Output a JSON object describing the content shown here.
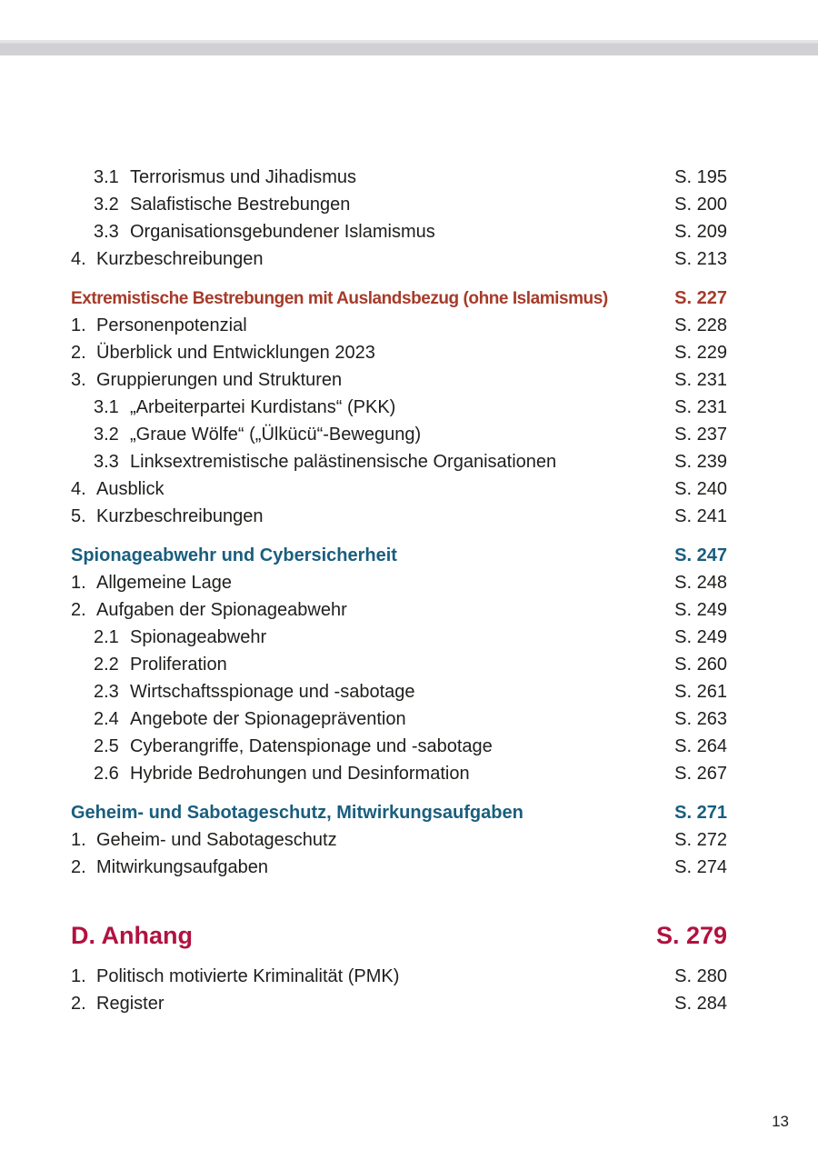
{
  "colors": {
    "body_text": "#1e1e1c",
    "heading_red_brown": "#a63b2a",
    "heading_blue": "#195e7e",
    "chapter_crimson": "#b1123f",
    "top_bar_gray": "#d1d1d3"
  },
  "page_number": "13",
  "rows": [
    {
      "num": "3.1",
      "label": "Terrorismus und Jihadismus",
      "page": "S. 195"
    },
    {
      "num": "3.2",
      "label": "Salafistische Bestrebungen",
      "page": "S. 200"
    },
    {
      "num": "3.3",
      "label": "Organisationsgebundener Islamismus",
      "page": "S. 209"
    },
    {
      "num": "4.",
      "label": "Kurzbeschreibungen",
      "page": "S. 213"
    },
    {
      "label": "Extremistische Bestrebungen mit Auslandsbezug (ohne Islamismus)",
      "page": "S. 227"
    },
    {
      "num": "1.",
      "label": "Personenpotenzial",
      "page": "S. 228"
    },
    {
      "num": "2.",
      "label": "Überblick und Entwicklungen 2023",
      "page": "S. 229"
    },
    {
      "num": "3.",
      "label": "Gruppierungen und Strukturen",
      "page": "S. 231"
    },
    {
      "num": "3.1",
      "label": "„Arbeiterpartei Kurdistans“ (PKK)",
      "page": "S. 231"
    },
    {
      "num": "3.2",
      "label": "„Graue Wölfe“ („Ülkücü“-Bewegung)",
      "page": "S. 237"
    },
    {
      "num": "3.3",
      "label": "Linksextremistische palästinensische Organisationen",
      "page": "S. 239"
    },
    {
      "num": "4.",
      "label": "Ausblick",
      "page": "S. 240"
    },
    {
      "num": "5.",
      "label": "Kurzbeschreibungen",
      "page": "S. 241"
    },
    {
      "label": "Spionageabwehr und Cybersicherheit",
      "page": "S. 247"
    },
    {
      "num": "1.",
      "label": "Allgemeine Lage",
      "page": "S. 248"
    },
    {
      "num": "2.",
      "label": "Aufgaben der Spionageabwehr",
      "page": "S. 249"
    },
    {
      "num": "2.1",
      "label": "Spionageabwehr",
      "page": "S. 249"
    },
    {
      "num": "2.2",
      "label": "Proliferation",
      "page": "S. 260"
    },
    {
      "num": "2.3",
      "label": "Wirtschaftsspionage und -sabotage",
      "page": "S. 261"
    },
    {
      "num": "2.4",
      "label": "Angebote der Spionageprävention",
      "page": "S. 263"
    },
    {
      "num": "2.5",
      "label": "Cyberangriffe, Datenspionage und -sabotage",
      "page": "S. 264"
    },
    {
      "num": "2.6",
      "label": "Hybride Bedrohungen und Desinformation",
      "page": "S. 267"
    },
    {
      "label": "Geheim- und Sabotageschutz, Mitwirkungsaufgaben",
      "page": "S. 271"
    },
    {
      "num": "1.",
      "label": "Geheim- und Sabotageschutz",
      "page": "S. 272"
    },
    {
      "num": "2.",
      "label": "Mitwirkungsaufgaben",
      "page": "S. 274"
    },
    {
      "label": "D. Anhang",
      "page": "S. 279"
    },
    {
      "num": "1.",
      "label": "Politisch motivierte Kriminalität (PMK)",
      "page": "S. 280"
    },
    {
      "num": "2.",
      "label": "Register",
      "page": "S. 284"
    }
  ]
}
